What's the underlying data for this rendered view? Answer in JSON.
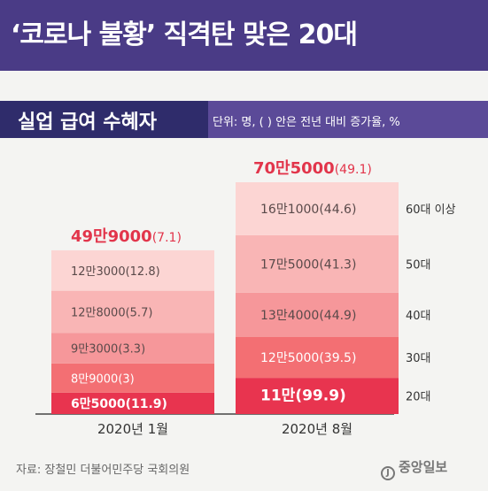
{
  "title": "‘코로나 불황’ 직격탄 맞은 20대",
  "subtitle": "실업 급여 수혜자",
  "unit_note": "단위: 명, ( ) 안은 전년 대비 증가율, %",
  "source": "자료: 장철민 더불어민주당 국회의원",
  "logo": "중앙일보",
  "colors": {
    "header_bg": "#4a3b86",
    "subtitle_bg": "#5b4a98",
    "subtitle_dark": "#2f2c6b",
    "total_label": "#e2354b",
    "segments": [
      "#e8344f",
      "#f36f73",
      "#f6979a",
      "#f9b5b5",
      "#fcd5d3"
    ]
  },
  "chart_data": {
    "type": "bar",
    "stacked": true,
    "categories": [
      "2020년 1월",
      "2020년 8월"
    ],
    "series": [
      {
        "name": "20대",
        "values": [
          65000,
          110000
        ],
        "value_labels": [
          "6만5000",
          "11만"
        ],
        "growth_labels": [
          "(11.9)",
          "(99.9)"
        ]
      },
      {
        "name": "30대",
        "values": [
          89000,
          125000
        ],
        "value_labels": [
          "8만9000",
          "12만5000"
        ],
        "growth_labels": [
          "(3)",
          "(39.5)"
        ]
      },
      {
        "name": "40대",
        "values": [
          93000,
          134000
        ],
        "value_labels": [
          "9만3000",
          "13만4000"
        ],
        "growth_labels": [
          "(3.3)",
          "(44.9)"
        ]
      },
      {
        "name": "50대",
        "values": [
          128000,
          175000
        ],
        "value_labels": [
          "12만8000",
          "17만5000"
        ],
        "growth_labels": [
          "(5.7)",
          "(41.3)"
        ]
      },
      {
        "name": "60대 이상",
        "values": [
          123000,
          161000
        ],
        "value_labels": [
          "12만3000",
          "16만1000"
        ],
        "growth_labels": [
          "(12.8)",
          "(44.6)"
        ]
      }
    ],
    "totals": [
      499000,
      705000
    ],
    "total_labels": [
      "49만9000",
      "70만5000"
    ],
    "total_growth_labels": [
      "(7.1)",
      "(49.1)"
    ]
  }
}
